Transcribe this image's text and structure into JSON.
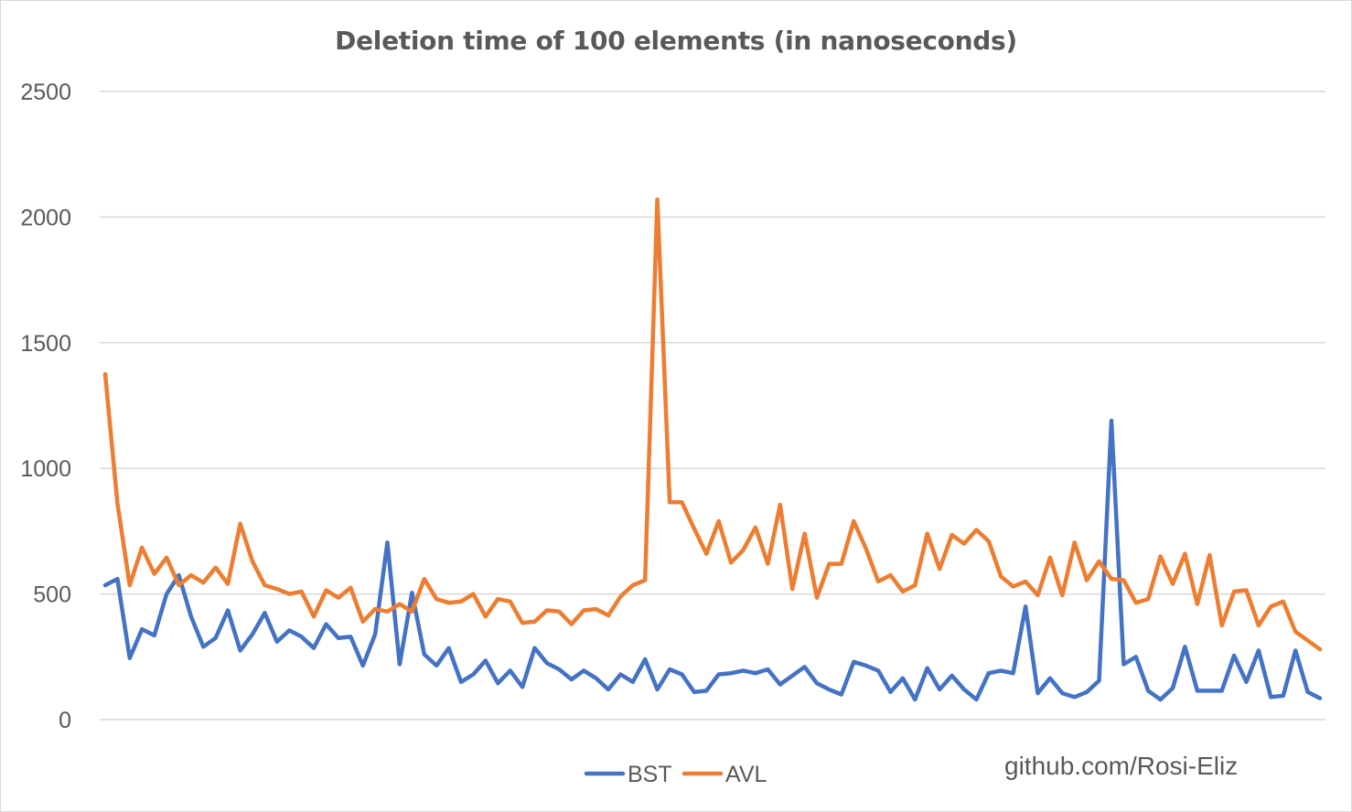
{
  "chart_data": {
    "type": "line",
    "title": "Deletion time of 100 elements (in nanoseconds)",
    "xlabel": "",
    "ylabel": "",
    "ylim": [
      0,
      2500
    ],
    "yticks": [
      0,
      500,
      1000,
      1500,
      2000,
      2500
    ],
    "grid": true,
    "legend_position": "bottom",
    "x": [
      1,
      2,
      3,
      4,
      5,
      6,
      7,
      8,
      9,
      10,
      11,
      12,
      13,
      14,
      15,
      16,
      17,
      18,
      19,
      20,
      21,
      22,
      23,
      24,
      25,
      26,
      27,
      28,
      29,
      30,
      31,
      32,
      33,
      34,
      35,
      36,
      37,
      38,
      39,
      40,
      41,
      42,
      43,
      44,
      45,
      46,
      47,
      48,
      49,
      50,
      51,
      52,
      53,
      54,
      55,
      56,
      57,
      58,
      59,
      60,
      61,
      62,
      63,
      64,
      65,
      66,
      67,
      68,
      69,
      70,
      71,
      72,
      73,
      74,
      75,
      76,
      77,
      78,
      79,
      80,
      81,
      82,
      83,
      84,
      85,
      86,
      87,
      88,
      89,
      90,
      91,
      92,
      93,
      94,
      95,
      96,
      97,
      98,
      99,
      100
    ],
    "series": [
      {
        "name": "BST",
        "color": "#4472c4",
        "values": [
          535,
          560,
          245,
          360,
          335,
          500,
          575,
          410,
          290,
          325,
          435,
          275,
          340,
          425,
          310,
          355,
          330,
          285,
          380,
          325,
          330,
          215,
          340,
          705,
          220,
          505,
          260,
          215,
          285,
          150,
          180,
          235,
          145,
          195,
          130,
          285,
          225,
          200,
          160,
          195,
          165,
          120,
          180,
          150,
          240,
          120,
          200,
          180,
          110,
          115,
          180,
          185,
          195,
          185,
          200,
          140,
          175,
          210,
          145,
          120,
          100,
          230,
          215,
          195,
          110,
          165,
          80,
          205,
          120,
          175,
          120,
          80,
          185,
          195,
          185,
          450,
          105,
          165,
          105,
          90,
          110,
          155,
          1190,
          220,
          250,
          115,
          80,
          125,
          290,
          115,
          115,
          115,
          255,
          150,
          275,
          90,
          95,
          275,
          110,
          85
        ]
      },
      {
        "name": "AVL",
        "color": "#ed7d31",
        "values": [
          1375,
          860,
          535,
          685,
          580,
          645,
          535,
          575,
          545,
          605,
          540,
          780,
          630,
          535,
          520,
          500,
          510,
          410,
          515,
          485,
          525,
          390,
          440,
          430,
          460,
          430,
          560,
          480,
          465,
          470,
          500,
          410,
          480,
          470,
          385,
          390,
          435,
          430,
          380,
          435,
          440,
          415,
          490,
          535,
          555,
          2070,
          865,
          865,
          760,
          660,
          790,
          625,
          675,
          765,
          620,
          855,
          520,
          740,
          485,
          620,
          620,
          790,
          680,
          550,
          575,
          510,
          535,
          740,
          600,
          735,
          700,
          755,
          710,
          570,
          530,
          550,
          495,
          645,
          495,
          705,
          555,
          630,
          560,
          555,
          465,
          480,
          650,
          540,
          660,
          460,
          655,
          375,
          510,
          515,
          375,
          450,
          470,
          350,
          315,
          280
        ]
      }
    ]
  },
  "watermark": "github.com/Rosi-Eliz"
}
